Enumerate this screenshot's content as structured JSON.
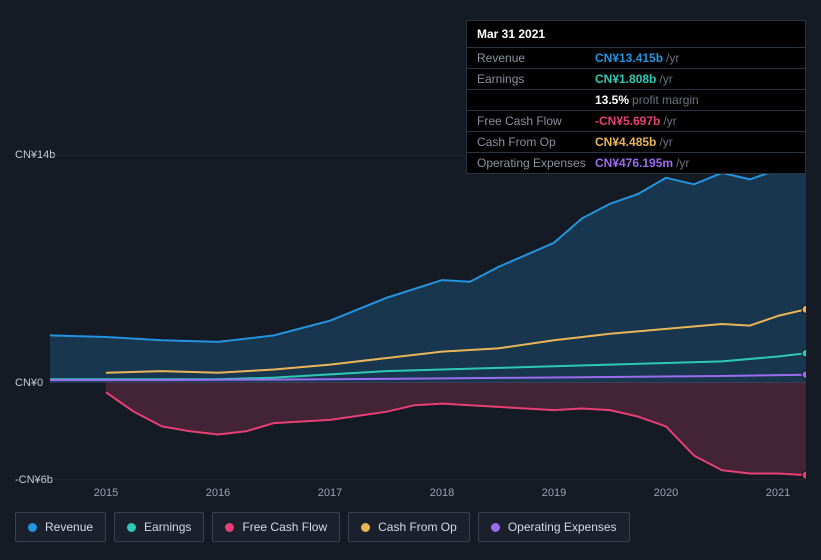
{
  "tooltip": {
    "date": "Mar 31 2021",
    "rows": [
      {
        "label": "Revenue",
        "value": "CN¥13.415b",
        "suffix": "/yr",
        "color": "#2394df"
      },
      {
        "label": "Earnings",
        "value": "CN¥1.808b",
        "suffix": "/yr",
        "color": "#2dc9b4"
      },
      {
        "label": "",
        "value": "13.5%",
        "suffix": "profit margin",
        "color": "#ffffff"
      },
      {
        "label": "Free Cash Flow",
        "value": "-CN¥5.697b",
        "suffix": "/yr",
        "color": "#e83f75"
      },
      {
        "label": "Cash From Op",
        "value": "CN¥4.485b",
        "suffix": "/yr",
        "color": "#eab558"
      },
      {
        "label": "Operating Expenses",
        "value": "CN¥476.195m",
        "suffix": "/yr",
        "color": "#9b6cf0"
      }
    ]
  },
  "chart": {
    "type": "area",
    "background": "#151b24",
    "plot_bg": "#1a212c",
    "y_range": [
      -6,
      14
    ],
    "y_ticks": [
      {
        "v": 14,
        "label": "CN¥14b"
      },
      {
        "v": 0,
        "label": "CN¥0"
      },
      {
        "v": -6,
        "label": "-CN¥6b"
      }
    ],
    "x_range": [
      2014.5,
      2021.25
    ],
    "x_ticks": [
      2015,
      2016,
      2017,
      2018,
      2019,
      2020,
      2021
    ],
    "grid_color": "#2a3340",
    "series": [
      {
        "name": "Revenue",
        "color": "#2394df",
        "fill_opacity": 0.22,
        "points": [
          [
            2014.5,
            2.9
          ],
          [
            2015.0,
            2.8
          ],
          [
            2015.5,
            2.6
          ],
          [
            2016.0,
            2.5
          ],
          [
            2016.5,
            2.9
          ],
          [
            2017.0,
            3.8
          ],
          [
            2017.5,
            5.2
          ],
          [
            2018.0,
            6.3
          ],
          [
            2018.25,
            6.2
          ],
          [
            2018.5,
            7.1
          ],
          [
            2019.0,
            8.6
          ],
          [
            2019.25,
            10.1
          ],
          [
            2019.5,
            11.0
          ],
          [
            2019.75,
            11.6
          ],
          [
            2020.0,
            12.6
          ],
          [
            2020.25,
            12.2
          ],
          [
            2020.5,
            12.9
          ],
          [
            2020.75,
            12.5
          ],
          [
            2021.0,
            13.1
          ],
          [
            2021.25,
            13.4
          ]
        ]
      },
      {
        "name": "Cash From Op",
        "color": "#eab558",
        "fill_opacity": 0.0,
        "points": [
          [
            2015.0,
            0.6
          ],
          [
            2015.5,
            0.7
          ],
          [
            2016.0,
            0.6
          ],
          [
            2016.5,
            0.8
          ],
          [
            2017.0,
            1.1
          ],
          [
            2017.5,
            1.5
          ],
          [
            2018.0,
            1.9
          ],
          [
            2018.5,
            2.1
          ],
          [
            2019.0,
            2.6
          ],
          [
            2019.5,
            3.0
          ],
          [
            2020.0,
            3.3
          ],
          [
            2020.5,
            3.6
          ],
          [
            2020.75,
            3.5
          ],
          [
            2021.0,
            4.1
          ],
          [
            2021.25,
            4.5
          ]
        ]
      },
      {
        "name": "Earnings",
        "color": "#2dc9b4",
        "fill_opacity": 0.0,
        "points": [
          [
            2014.5,
            0.2
          ],
          [
            2015.0,
            0.2
          ],
          [
            2015.5,
            0.2
          ],
          [
            2016.0,
            0.2
          ],
          [
            2016.5,
            0.3
          ],
          [
            2017.0,
            0.5
          ],
          [
            2017.5,
            0.7
          ],
          [
            2018.0,
            0.8
          ],
          [
            2018.5,
            0.9
          ],
          [
            2019.0,
            1.0
          ],
          [
            2019.5,
            1.1
          ],
          [
            2020.0,
            1.2
          ],
          [
            2020.5,
            1.3
          ],
          [
            2021.0,
            1.6
          ],
          [
            2021.25,
            1.8
          ]
        ]
      },
      {
        "name": "Operating Expenses",
        "color": "#9b6cf0",
        "fill_opacity": 0.0,
        "points": [
          [
            2014.5,
            0.15
          ],
          [
            2015.5,
            0.15
          ],
          [
            2016.5,
            0.18
          ],
          [
            2017.5,
            0.22
          ],
          [
            2018.5,
            0.28
          ],
          [
            2019.5,
            0.34
          ],
          [
            2020.5,
            0.4
          ],
          [
            2021.25,
            0.48
          ]
        ]
      },
      {
        "name": "Free Cash Flow",
        "color": "#e83f75",
        "fill_opacity": 0.22,
        "points": [
          [
            2015.0,
            -0.6
          ],
          [
            2015.25,
            -1.8
          ],
          [
            2015.5,
            -2.7
          ],
          [
            2015.75,
            -3.0
          ],
          [
            2016.0,
            -3.2
          ],
          [
            2016.25,
            -3.0
          ],
          [
            2016.5,
            -2.5
          ],
          [
            2017.0,
            -2.3
          ],
          [
            2017.5,
            -1.8
          ],
          [
            2017.75,
            -1.4
          ],
          [
            2018.0,
            -1.3
          ],
          [
            2018.5,
            -1.5
          ],
          [
            2019.0,
            -1.7
          ],
          [
            2019.25,
            -1.6
          ],
          [
            2019.5,
            -1.7
          ],
          [
            2019.75,
            -2.1
          ],
          [
            2020.0,
            -2.7
          ],
          [
            2020.25,
            -4.5
          ],
          [
            2020.5,
            -5.4
          ],
          [
            2020.75,
            -5.6
          ],
          [
            2021.0,
            -5.6
          ],
          [
            2021.25,
            -5.7
          ]
        ]
      }
    ],
    "end_markers": true,
    "line_width": 2
  },
  "legend": [
    {
      "label": "Revenue",
      "color": "#2394df"
    },
    {
      "label": "Earnings",
      "color": "#2dc9b4"
    },
    {
      "label": "Free Cash Flow",
      "color": "#e83f75"
    },
    {
      "label": "Cash From Op",
      "color": "#eab558"
    },
    {
      "label": "Operating Expenses",
      "color": "#9b6cf0"
    }
  ]
}
